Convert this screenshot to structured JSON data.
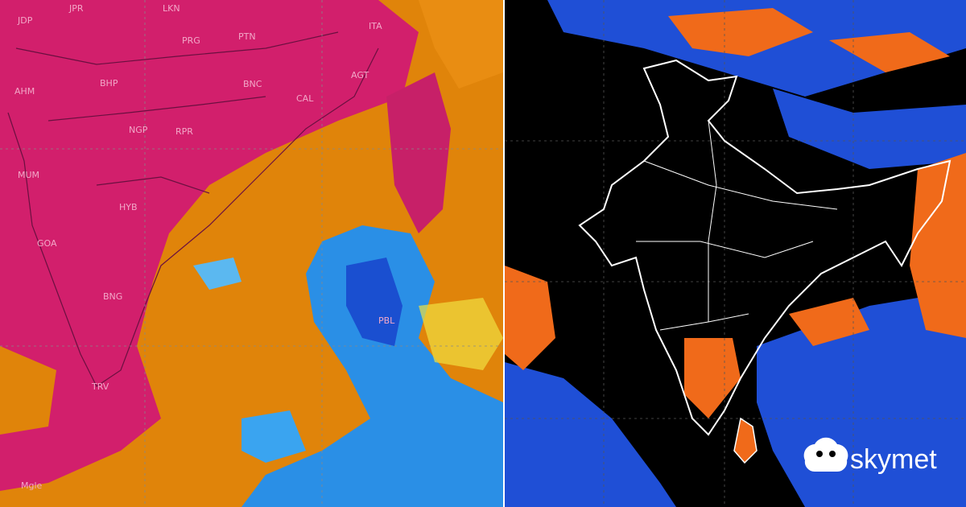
{
  "left_map": {
    "labels": [
      "JDP",
      "JPR",
      "LKN",
      "ITA",
      "PRG",
      "PTN",
      "AHM",
      "BHP",
      "BNC",
      "AGT",
      "CAL",
      "NGP",
      "RPR",
      "MUM",
      "HYB",
      "GOA",
      "BNG",
      "PBL",
      "TRV",
      "Mgle"
    ]
  },
  "logo": {
    "text": "skymet"
  }
}
